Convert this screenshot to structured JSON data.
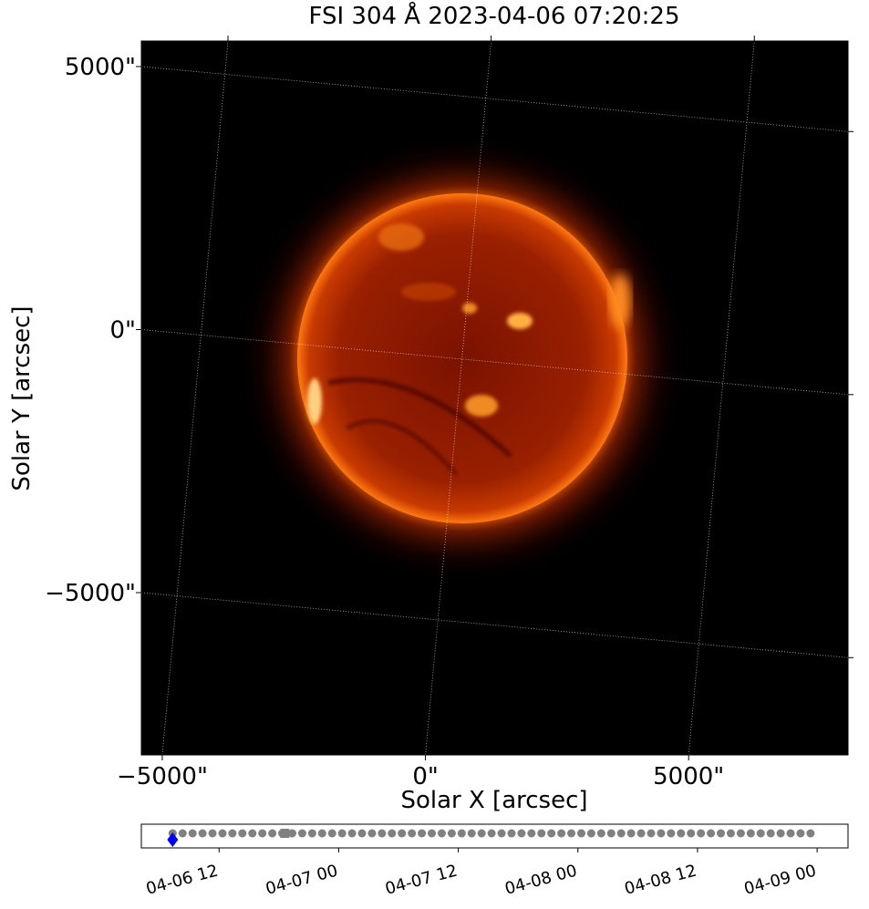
{
  "chart_data": [
    {
      "type": "image",
      "title": "FSI 304 Å 2023-04-06 07:20:25",
      "xlabel": "Solar X [arcsec]",
      "ylabel": "Solar Y [arcsec]",
      "xlim": [
        -5398,
        8028
      ],
      "ylim": [
        -8085,
        5485
      ],
      "xticks": [
        {
          "value": -5000,
          "label": "−5000\""
        },
        {
          "value": 0,
          "label": "0\""
        },
        {
          "value": 5000,
          "label": "5000\""
        }
      ],
      "yticks": [
        {
          "value": -5000,
          "label": "−5000\""
        },
        {
          "value": 0,
          "label": "0\""
        },
        {
          "value": 5000,
          "label": "5000\""
        }
      ],
      "grid": true
    },
    {
      "type": "timeline",
      "xlim": [
        4.2,
        75.1
      ],
      "xticks": [
        {
          "value": 12,
          "label": "04-06 12"
        },
        {
          "value": 24,
          "label": "04-07 00"
        },
        {
          "value": 36,
          "label": "04-07 12"
        },
        {
          "value": 48,
          "label": "04-08 00"
        },
        {
          "value": 60,
          "label": "04-08 12"
        },
        {
          "value": 72,
          "label": "04-09 00"
        }
      ],
      "series": [
        {
          "marker": "circle",
          "color": "#808080",
          "x": [
            7.34,
            8.34,
            9.34,
            10.34,
            11.34,
            12.34,
            13.34,
            14.34,
            15.34,
            16.34,
            17.34,
            18.34,
            19.34,
            20.34,
            21.34,
            22.34,
            23.34,
            24.34,
            25.34,
            26.34,
            27.34,
            28.34,
            29.34,
            30.34,
            31.34,
            32.34,
            33.34,
            34.34,
            35.34,
            36.34,
            37.34,
            38.34,
            39.34,
            40.34,
            41.34,
            42.34,
            43.34,
            44.34,
            45.34,
            46.34,
            47.34,
            48.34,
            49.34,
            50.34,
            51.34,
            52.34,
            53.34,
            54.34,
            55.34,
            56.34,
            57.34,
            58.34,
            59.34,
            60.34,
            61.34,
            62.34,
            63.34,
            64.34,
            65.34,
            66.34,
            67.34,
            68.34,
            69.34,
            70.34,
            71.34
          ]
        },
        {
          "marker": "square",
          "color": "#808080",
          "x": [
            18.6
          ]
        },
        {
          "marker": "diamond",
          "color": "#0000ff",
          "x": [
            7.34
          ]
        }
      ]
    }
  ]
}
